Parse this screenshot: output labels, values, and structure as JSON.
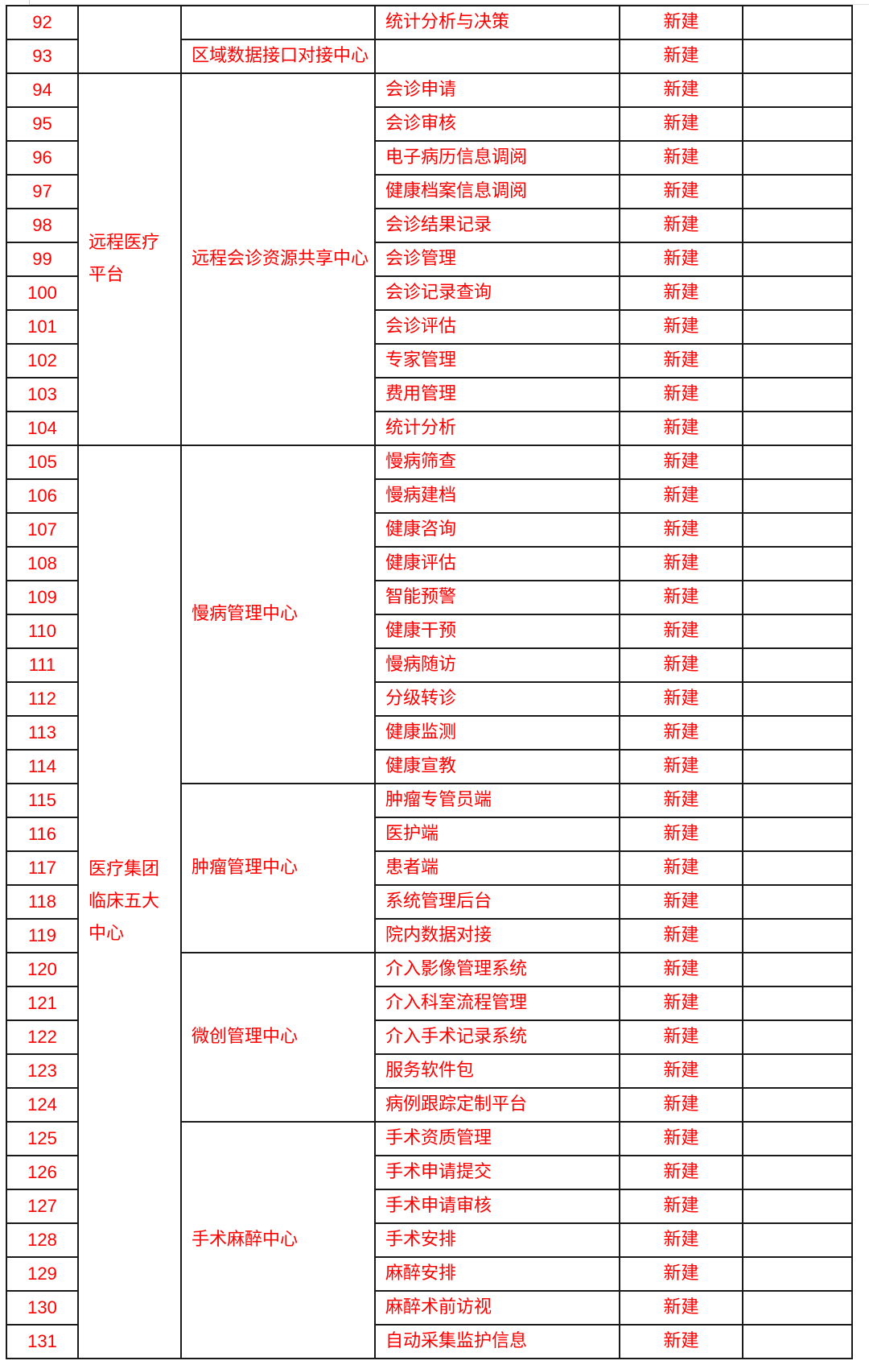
{
  "text_color": "#ff0000",
  "status_label": "新建",
  "platforms": [
    {
      "name": "",
      "centers": [
        {
          "name": "",
          "items": [
            {
              "no": "92",
              "name": "统计分析与决策",
              "status": "新建"
            }
          ]
        },
        {
          "name": "区域数据接口对接中心",
          "items": [
            {
              "no": "93",
              "name": "",
              "status": "新建"
            }
          ]
        }
      ]
    },
    {
      "name": "远程医疗平台",
      "centers": [
        {
          "name": "远程会诊资源共享中心",
          "items": [
            {
              "no": "94",
              "name": "会诊申请",
              "status": "新建"
            },
            {
              "no": "95",
              "name": "会诊审核",
              "status": "新建"
            },
            {
              "no": "96",
              "name": "电子病历信息调阅",
              "status": "新建"
            },
            {
              "no": "97",
              "name": "健康档案信息调阅",
              "status": "新建"
            },
            {
              "no": "98",
              "name": "会诊结果记录",
              "status": "新建"
            },
            {
              "no": "99",
              "name": "会诊管理",
              "status": "新建"
            },
            {
              "no": "100",
              "name": "会诊记录查询",
              "status": "新建"
            },
            {
              "no": "101",
              "name": "会诊评估",
              "status": "新建"
            },
            {
              "no": "102",
              "name": "专家管理",
              "status": "新建"
            },
            {
              "no": "103",
              "name": "费用管理",
              "status": "新建"
            },
            {
              "no": "104",
              "name": "统计分析",
              "status": "新建"
            }
          ]
        }
      ]
    },
    {
      "name": "医疗集团临床五大中心",
      "centers": [
        {
          "name": "慢病管理中心",
          "items": [
            {
              "no": "105",
              "name": "慢病筛查",
              "status": "新建"
            },
            {
              "no": "106",
              "name": "慢病建档",
              "status": "新建"
            },
            {
              "no": "107",
              "name": "健康咨询",
              "status": "新建"
            },
            {
              "no": "108",
              "name": "健康评估",
              "status": "新建"
            },
            {
              "no": "109",
              "name": "智能预警",
              "status": "新建"
            },
            {
              "no": "110",
              "name": "健康干预",
              "status": "新建"
            },
            {
              "no": "111",
              "name": "慢病随访",
              "status": "新建"
            },
            {
              "no": "112",
              "name": "分级转诊",
              "status": "新建"
            },
            {
              "no": "113",
              "name": "健康监测",
              "status": "新建"
            },
            {
              "no": "114",
              "name": "健康宣教",
              "status": "新建"
            }
          ]
        },
        {
          "name": "肿瘤管理中心",
          "items": [
            {
              "no": "115",
              "name": "肿瘤专管员端",
              "status": "新建"
            },
            {
              "no": "116",
              "name": "医护端",
              "status": "新建"
            },
            {
              "no": "117",
              "name": "患者端",
              "status": "新建"
            },
            {
              "no": "118",
              "name": "系统管理后台",
              "status": "新建"
            },
            {
              "no": "119",
              "name": "院内数据对接",
              "status": "新建"
            }
          ]
        },
        {
          "name": "微创管理中心",
          "items": [
            {
              "no": "120",
              "name": "介入影像管理系统",
              "status": "新建"
            },
            {
              "no": "121",
              "name": "介入科室流程管理",
              "status": "新建"
            },
            {
              "no": "122",
              "name": "介入手术记录系统",
              "status": "新建"
            },
            {
              "no": "123",
              "name": "服务软件包",
              "status": "新建"
            },
            {
              "no": "124",
              "name": "病例跟踪定制平台",
              "status": "新建"
            }
          ]
        },
        {
          "name": "手术麻醉中心",
          "items": [
            {
              "no": "125",
              "name": "手术资质管理",
              "status": "新建"
            },
            {
              "no": "126",
              "name": "手术申请提交",
              "status": "新建"
            },
            {
              "no": "127",
              "name": "手术申请审核",
              "status": "新建"
            },
            {
              "no": "128",
              "name": "手术安排",
              "status": "新建"
            },
            {
              "no": "129",
              "name": "麻醉安排",
              "status": "新建"
            },
            {
              "no": "130",
              "name": "麻醉术前访视",
              "status": "新建"
            },
            {
              "no": "131",
              "name": "自动采集监护信息",
              "status": "新建"
            }
          ]
        }
      ]
    }
  ]
}
